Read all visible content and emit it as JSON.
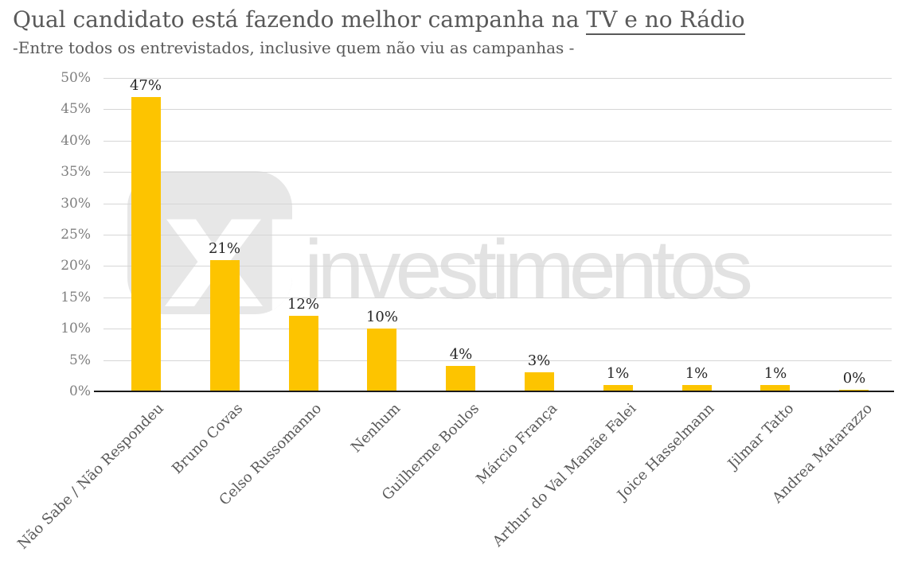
{
  "header": {
    "title_prefix": "Qual candidato está fazendo melhor campanha na ",
    "title_underlined": "TV e no Rádio",
    "subtitle": "-Entre todos os entrevistados, inclusive quem não viu as campanhas -"
  },
  "watermark": {
    "logo_text": "xp",
    "brand_text": "investimentos"
  },
  "colors": {
    "bar": "#FDC400",
    "gridline": "#D6D6D6",
    "axis": "#1A1A1A",
    "title_text": "#595959",
    "tick_text": "#7F7F7F",
    "value_text": "#262626",
    "watermark_gray": "#E7E7E7"
  },
  "chart_data": {
    "type": "bar",
    "title": "Qual candidato está fazendo melhor campanha na TV e no Rádio",
    "subtitle": "-Entre todos os entrevistados, inclusive quem não viu as campanhas -",
    "categories": [
      "Não Sabe / Não Respondeu",
      "Bruno Covas",
      "Celso Russomanno",
      "Nenhum",
      "Guilherme Boulos",
      "Márcio França",
      "Arthur do Val Mamãe Falei",
      "Joice Hasselmann",
      "Jilmar Tatto",
      "Andrea Matarazzo"
    ],
    "values": [
      47,
      21,
      12,
      10,
      4,
      3,
      1,
      1,
      1,
      0
    ],
    "value_labels": [
      "47%",
      "21%",
      "12%",
      "10%",
      "4%",
      "3%",
      "1%",
      "1%",
      "1%",
      "0%"
    ],
    "xlabel": "",
    "ylabel": "",
    "ylim": [
      0,
      50
    ],
    "ytick_step": 5,
    "yticks": [
      "0%",
      "5%",
      "10%",
      "15%",
      "20%",
      "25%",
      "30%",
      "35%",
      "40%",
      "45%",
      "50%"
    ],
    "grid": true,
    "legend": false
  }
}
